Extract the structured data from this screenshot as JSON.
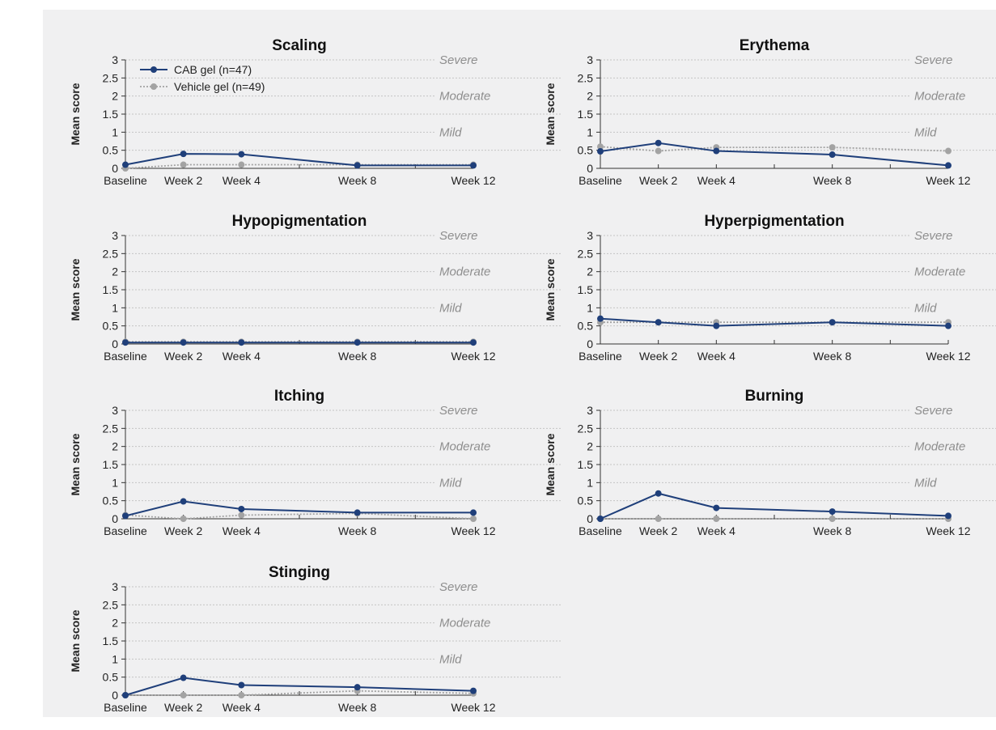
{
  "chart_data": [
    {
      "type": "line",
      "title": "Scaling",
      "ylabel": "Mean score",
      "categories": [
        "Baseline",
        "Week 2",
        "Week 4",
        "Week 8",
        "Week 12"
      ],
      "ylim": [
        0,
        3
      ],
      "yticks": [
        "0",
        "0.5",
        "1",
        "1.5",
        "2",
        "2.5",
        "3"
      ],
      "severity_labels": [
        "Severe",
        "Moderate",
        "Mild"
      ],
      "series": [
        {
          "name": "CAB gel (n=47)",
          "values": [
            0.1,
            0.4,
            0.39,
            0.08,
            0.08
          ]
        },
        {
          "name": "Vehicle gel (n=49)",
          "values": [
            0.0,
            0.1,
            0.1,
            0.1,
            0.1
          ]
        }
      ]
    },
    {
      "type": "line",
      "title": "Erythema",
      "ylabel": "Mean score",
      "categories": [
        "Baseline",
        "Week 2",
        "Week 4",
        "Week 8",
        "Week 12"
      ],
      "ylim": [
        0,
        3
      ],
      "yticks": [
        "0",
        "0.5",
        "1",
        "1.5",
        "2",
        "2.5",
        "3"
      ],
      "severity_labels": [
        "Severe",
        "Moderate",
        "Mild"
      ],
      "series": [
        {
          "name": "CAB gel (n=47)",
          "values": [
            0.47,
            0.7,
            0.48,
            0.38,
            0.08
          ]
        },
        {
          "name": "Vehicle gel (n=49)",
          "values": [
            0.6,
            0.48,
            0.58,
            0.58,
            0.48
          ]
        }
      ]
    },
    {
      "type": "line",
      "title": "Hypopigmentation",
      "ylabel": "Mean score",
      "categories": [
        "Baseline",
        "Week 2",
        "Week 4",
        "Week 8",
        "Week 12"
      ],
      "ylim": [
        0,
        3
      ],
      "yticks": [
        "0",
        "0.5",
        "1",
        "1.5",
        "2",
        "2.5",
        "3"
      ],
      "severity_labels": [
        "Severe",
        "Moderate",
        "Mild"
      ],
      "series": [
        {
          "name": "CAB gel (n=47)",
          "values": [
            0.04,
            0.04,
            0.04,
            0.04,
            0.04
          ]
        },
        {
          "name": "Vehicle gel (n=49)",
          "values": [
            0.06,
            0.06,
            0.06,
            0.06,
            0.06
          ]
        }
      ]
    },
    {
      "type": "line",
      "title": "Hyperpigmentation",
      "ylabel": "Mean score",
      "categories": [
        "Baseline",
        "Week 2",
        "Week 4",
        "Week 8",
        "Week 12"
      ],
      "ylim": [
        0,
        3
      ],
      "yticks": [
        "0",
        "0.5",
        "1",
        "1.5",
        "2",
        "2.5",
        "3"
      ],
      "severity_labels": [
        "Severe",
        "Moderate",
        "Mild"
      ],
      "series": [
        {
          "name": "CAB gel (n=47)",
          "values": [
            0.7,
            0.6,
            0.5,
            0.6,
            0.5
          ]
        },
        {
          "name": "Vehicle gel (n=49)",
          "values": [
            0.6,
            0.6,
            0.6,
            0.6,
            0.6
          ]
        }
      ]
    },
    {
      "type": "line",
      "title": "Itching",
      "ylabel": "Mean score",
      "categories": [
        "Baseline",
        "Week 2",
        "Week 4",
        "Week 8",
        "Week 12"
      ],
      "ylim": [
        0,
        3
      ],
      "yticks": [
        "0",
        "0.5",
        "1",
        "1.5",
        "2",
        "2.5",
        "3"
      ],
      "severity_labels": [
        "Severe",
        "Moderate",
        "Mild"
      ],
      "series": [
        {
          "name": "CAB gel (n=47)",
          "values": [
            0.08,
            0.48,
            0.27,
            0.17,
            0.17
          ]
        },
        {
          "name": "Vehicle gel (n=49)",
          "values": [
            0.1,
            0.0,
            0.1,
            0.15,
            0.0
          ]
        }
      ]
    },
    {
      "type": "line",
      "title": "Burning",
      "ylabel": "Mean score",
      "categories": [
        "Baseline",
        "Week 2",
        "Week 4",
        "Week 8",
        "Week 12"
      ],
      "ylim": [
        0,
        3
      ],
      "yticks": [
        "0",
        "0.5",
        "1",
        "1.5",
        "2",
        "2.5",
        "3"
      ],
      "severity_labels": [
        "Severe",
        "Moderate",
        "Mild"
      ],
      "series": [
        {
          "name": "CAB gel (n=47)",
          "values": [
            0.0,
            0.7,
            0.3,
            0.2,
            0.08
          ]
        },
        {
          "name": "Vehicle gel (n=49)",
          "values": [
            0.0,
            0.0,
            0.0,
            0.0,
            0.0
          ]
        }
      ]
    },
    {
      "type": "line",
      "title": "Stinging",
      "ylabel": "Mean score",
      "categories": [
        "Baseline",
        "Week 2",
        "Week 4",
        "Week 8",
        "Week 12"
      ],
      "ylim": [
        0,
        3
      ],
      "yticks": [
        "0",
        "0.5",
        "1",
        "1.5",
        "2",
        "2.5",
        "3"
      ],
      "severity_labels": [
        "Severe",
        "Moderate",
        "Mild"
      ],
      "series": [
        {
          "name": "CAB gel (n=47)",
          "values": [
            0.0,
            0.48,
            0.28,
            0.22,
            0.12
          ]
        },
        {
          "name": "Vehicle gel (n=49)",
          "values": [
            0.0,
            0.0,
            0.0,
            0.12,
            0.05
          ]
        }
      ]
    }
  ],
  "x_positions": [
    0,
    2,
    4,
    8,
    12
  ],
  "legend": {
    "items": [
      "CAB gel (n=47)",
      "Vehicle gel (n=49)"
    ],
    "placement": "top-left of first chart"
  },
  "colors": {
    "cab": "#1f3f7a",
    "vehicle": "#a3a3a3",
    "severity_text": "#8e8e8e",
    "grid": "#c4c4c4",
    "background": "#f0f0f1"
  }
}
